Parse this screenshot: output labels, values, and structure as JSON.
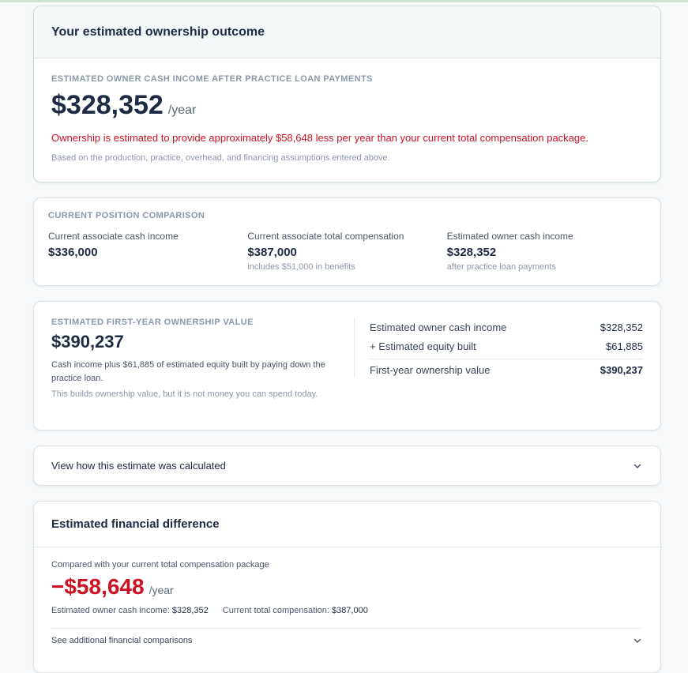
{
  "outcome": {
    "title": "Your estimated ownership outcome",
    "eyebrow": "ESTIMATED OWNER CASH INCOME AFTER PRACTICE LOAN PAYMENTS",
    "value": "$328,352",
    "per": "/year",
    "warning": "Ownership is estimated to provide approximately $58,648 less per year than your current total compensation package.",
    "note": "Based on the production, practice, overhead, and financing assumptions entered above."
  },
  "compare": {
    "eyebrow": "CURRENT POSITION COMPARISON",
    "cols": [
      {
        "label": "Current associate cash income",
        "value": "$336,000",
        "note": ""
      },
      {
        "label": "Current associate total compensation",
        "value": "$387,000",
        "note": "includes $51,000 in benefits"
      },
      {
        "label": "Estimated owner cash income",
        "value": "$328,352",
        "note": "after practice loan payments"
      }
    ]
  },
  "first_year": {
    "eyebrow": "ESTIMATED FIRST-YEAR OWNERSHIP VALUE",
    "value": "$390,237",
    "desc": "Cash income plus $61,885 of estimated equity built by paying down the practice loan.",
    "desc2": "This builds ownership value, but it is not money you can spend today.",
    "rows": [
      {
        "label": "Estimated owner cash income",
        "amount": "$328,352"
      },
      {
        "label": "+ Estimated equity built",
        "amount": "$61,885"
      }
    ],
    "total": {
      "label": "First-year ownership value",
      "amount": "$390,237"
    }
  },
  "calc": {
    "label": "View how this estimate was calculated",
    "icon": "chevron-down-icon"
  },
  "difference": {
    "title": "Estimated financial difference",
    "subtitle": "Compared with your current total compensation package",
    "value": "−$58,648",
    "per": "/year",
    "owner_label": "Estimated owner cash income:",
    "owner_value": "$328,352",
    "comp_label": "Current total compensation:",
    "comp_value": "$387,000",
    "more_label": "See additional financial comparisons"
  },
  "colors": {
    "accent_red": "#cc1122",
    "text_dark": "#1f2a44",
    "header_bg": "#f3f7f7"
  }
}
